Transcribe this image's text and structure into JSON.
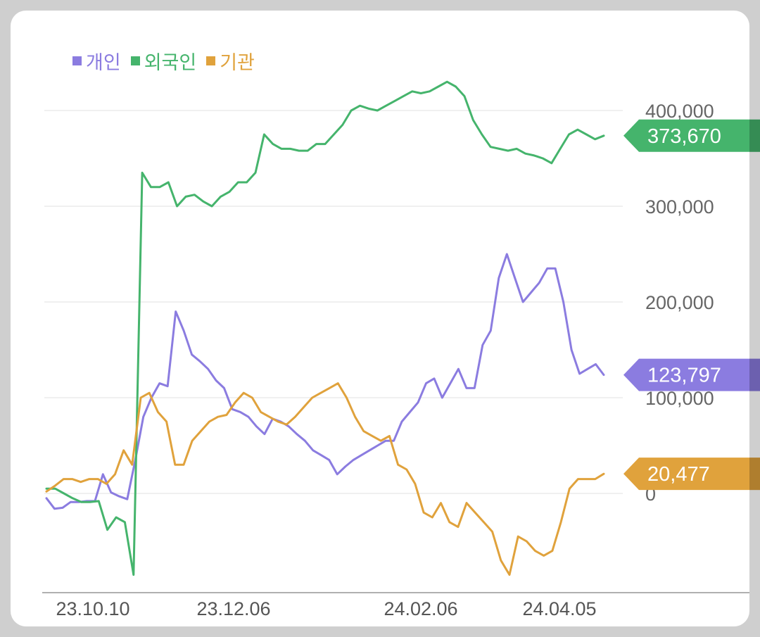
{
  "colors": {
    "individual": "#8b7ce0",
    "foreign": "#45b46c",
    "institution": "#e0a23c",
    "grid": "#ececec",
    "axis": "#b0b0b0"
  },
  "chart_data": {
    "type": "line",
    "x_ticks": [
      "23.10.10",
      "23.12.06",
      "24.02.06",
      "24.04.05"
    ],
    "y_ticks": [
      "400,000",
      "300,000",
      "200,000",
      "100,000",
      "0"
    ],
    "y_tick_values": [
      400000,
      300000,
      200000,
      100000,
      0
    ],
    "ylim": [
      -100000,
      420000
    ],
    "legend_position": "top-left",
    "series": [
      {
        "name": "개인",
        "color_key": "individual",
        "last_value_label": "123,797",
        "values": [
          -5000,
          -16000,
          -15000,
          -9000,
          -9000,
          -8000,
          -8000,
          20000,
          1000,
          -3000,
          -6000,
          35000,
          80000,
          100000,
          115000,
          112000,
          190000,
          170000,
          145000,
          138000,
          130000,
          118000,
          110000,
          88000,
          85000,
          80000,
          70000,
          62000,
          78000,
          75000,
          70000,
          62000,
          55000,
          45000,
          40000,
          35000,
          20000,
          28000,
          35000,
          40000,
          45000,
          50000,
          55000,
          55000,
          75000,
          85000,
          95000,
          115000,
          120000,
          100000,
          115000,
          130000,
          110000,
          110000,
          155000,
          170000,
          225000,
          250000,
          225000,
          200000,
          210000,
          220000,
          235000,
          235000,
          200000,
          150000,
          125000,
          130000,
          135000,
          123797
        ]
      },
      {
        "name": "외국인",
        "color_key": "foreign",
        "last_value_label": "373,670",
        "values": [
          5000,
          5000,
          0,
          -5000,
          -9000,
          -9000,
          -8000,
          -38000,
          -25000,
          -30000,
          -85000,
          335000,
          320000,
          320000,
          325000,
          300000,
          310000,
          312000,
          305000,
          300000,
          310000,
          315000,
          325000,
          325000,
          335000,
          375000,
          365000,
          360000,
          360000,
          358000,
          358000,
          365000,
          365000,
          375000,
          385000,
          400000,
          405000,
          402000,
          400000,
          405000,
          410000,
          415000,
          420000,
          418000,
          420000,
          425000,
          430000,
          425000,
          415000,
          390000,
          375000,
          362000,
          360000,
          358000,
          360000,
          355000,
          353000,
          350000,
          345000,
          360000,
          375000,
          380000,
          375000,
          370000,
          373670
        ]
      },
      {
        "name": "기관",
        "color_key": "institution",
        "last_value_label": "20,477",
        "values": [
          2000,
          8000,
          15000,
          15000,
          12000,
          15000,
          15000,
          10000,
          20000,
          45000,
          30000,
          100000,
          105000,
          85000,
          75000,
          30000,
          30000,
          55000,
          65000,
          75000,
          80000,
          82000,
          95000,
          105000,
          100000,
          85000,
          80000,
          75000,
          72000,
          80000,
          90000,
          100000,
          105000,
          110000,
          115000,
          100000,
          80000,
          65000,
          60000,
          55000,
          60000,
          30000,
          25000,
          10000,
          -20000,
          -25000,
          -10000,
          -30000,
          -35000,
          -10000,
          -20000,
          -30000,
          -40000,
          -70000,
          -85000,
          -45000,
          -50000,
          -60000,
          -65000,
          -60000,
          -30000,
          5000,
          15000,
          15000,
          15000,
          20477
        ]
      }
    ]
  }
}
